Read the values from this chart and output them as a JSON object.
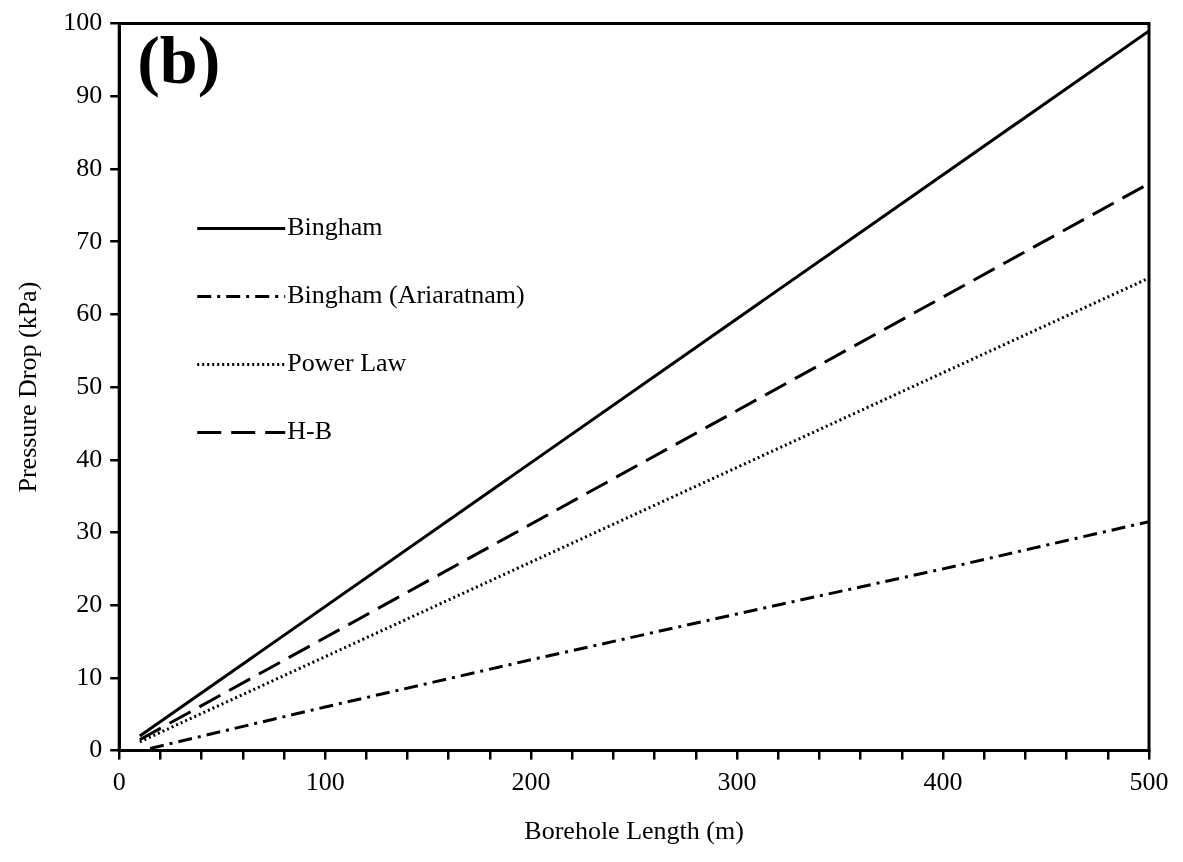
{
  "chart_data": {
    "type": "line",
    "xlabel": "Borehole Length (m)",
    "ylabel": "Pressure Drop (kPa)",
    "annotations": [
      "(b)"
    ],
    "xlim": [
      0,
      500
    ],
    "ylim": [
      0,
      100
    ],
    "xticks": [
      0,
      {
        "value": 20,
        "label": null
      },
      {
        "value": 40,
        "label": null
      },
      {
        "value": 60,
        "label": null
      },
      {
        "value": 80,
        "label": null
      },
      100,
      {
        "value": 120,
        "label": null
      },
      {
        "value": 140,
        "label": null
      },
      {
        "value": 160,
        "label": null
      },
      {
        "value": 180,
        "label": null
      },
      200,
      {
        "value": 220,
        "label": null
      },
      {
        "value": 240,
        "label": null
      },
      {
        "value": 260,
        "label": null
      },
      {
        "value": 280,
        "label": null
      },
      300,
      {
        "value": 320,
        "label": null
      },
      {
        "value": 340,
        "label": null
      },
      {
        "value": 360,
        "label": null
      },
      {
        "value": 380,
        "label": null
      },
      400,
      {
        "value": 420,
        "label": null
      },
      {
        "value": 440,
        "label": null
      },
      {
        "value": 460,
        "label": null
      },
      {
        "value": 480,
        "label": null
      },
      500
    ],
    "yticks": [
      0,
      10,
      20,
      30,
      40,
      50,
      60,
      70,
      80,
      90,
      100
    ],
    "grid": false,
    "legend": "top left",
    "marker": "none",
    "series": [
      {
        "name": "Bingham",
        "color": "#000000",
        "line_style": "solid",
        "x": [
          10,
          500
        ],
        "values": [
          2,
          99
        ]
      },
      {
        "name": "Bingham (Ariaratnam)",
        "color": "#000000",
        "line_style": "dashdot",
        "x": [
          15,
          100,
          200,
          300,
          400,
          500
        ],
        "values": [
          0.3,
          6,
          12.5,
          18.8,
          25,
          31.5
        ]
      },
      {
        "name": "Power Law",
        "color": "#000000",
        "line_style": "dotted",
        "x": [
          10,
          500
        ],
        "values": [
          1.2,
          65
        ]
      },
      {
        "name": "H-B",
        "color": "#000000",
        "line_style": "dashed",
        "x": [
          10,
          500
        ],
        "values": [
          1.5,
          78
        ]
      }
    ]
  }
}
